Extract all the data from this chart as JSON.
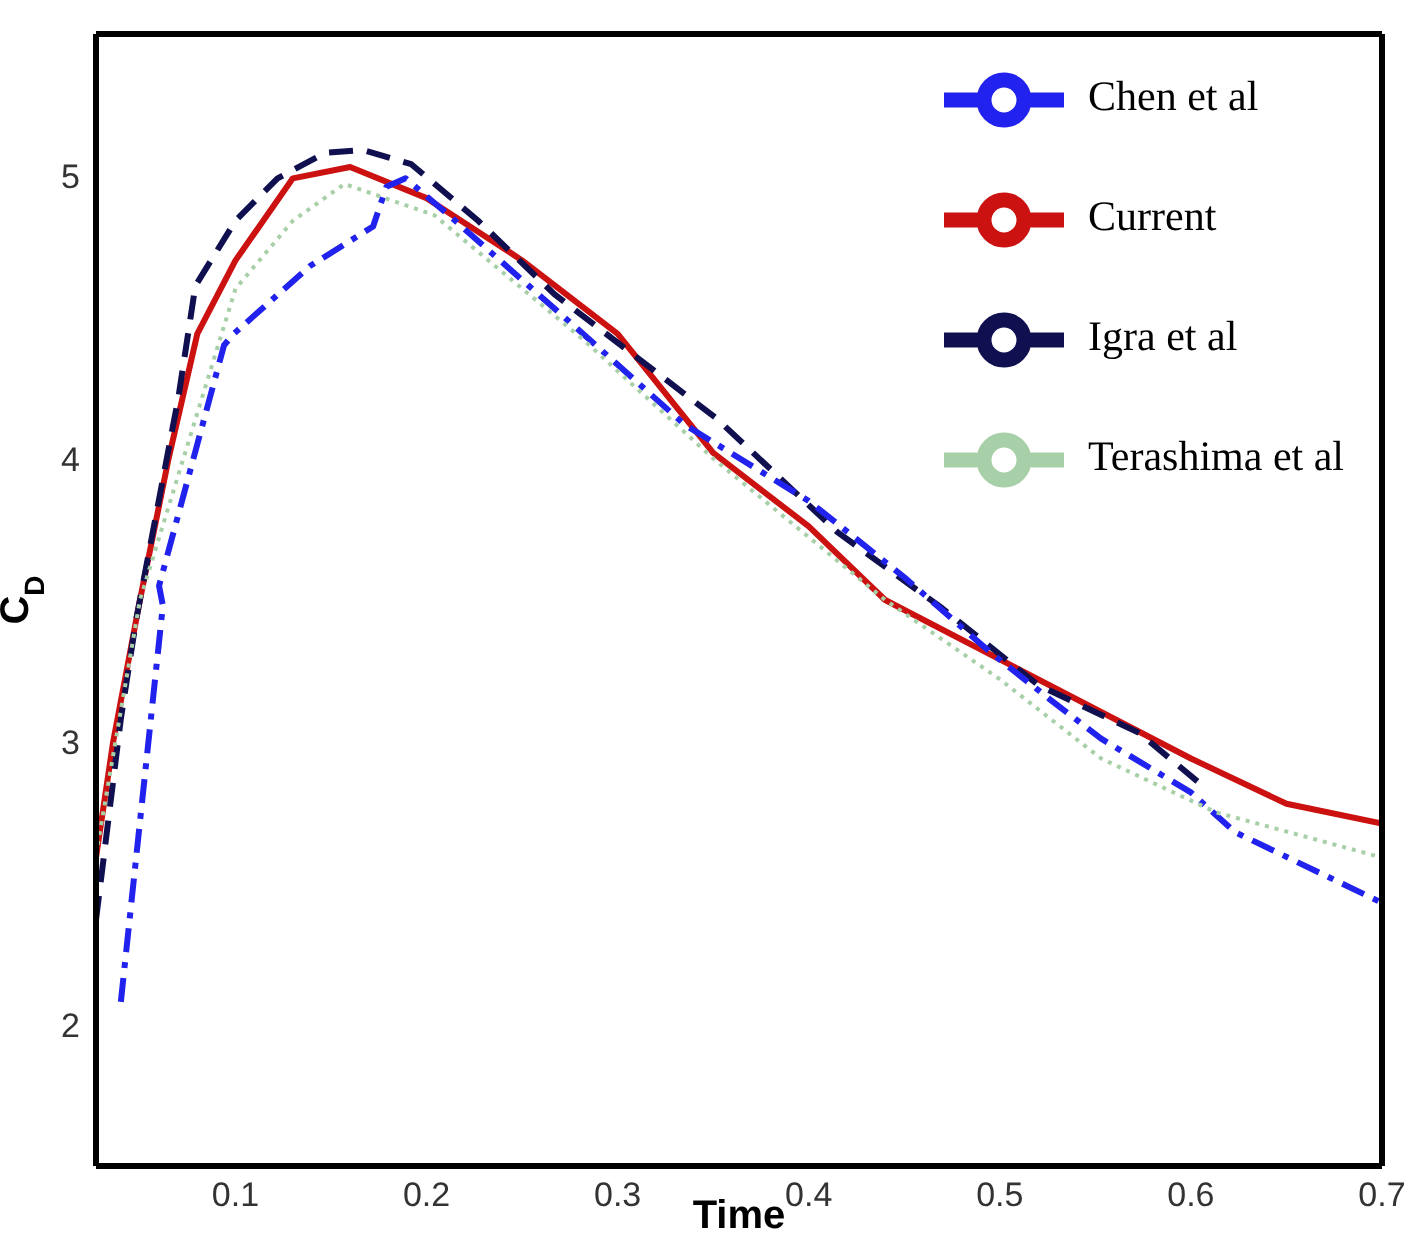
{
  "chart_data": {
    "type": "line",
    "xlabel": "Time",
    "ylabel": "C$_{D}$",
    "xlim": [
      0.027,
      0.7
    ],
    "ylim": [
      1.5,
      5.5
    ],
    "xticks": [
      0.1,
      0.2,
      0.3,
      0.4,
      0.5,
      0.6,
      0.7
    ],
    "yticks": [
      2,
      3,
      4,
      5
    ],
    "legend": "top right",
    "marker": "none",
    "series": [
      {
        "name": "Current",
        "color": "#cc1111",
        "line_style": "solid",
        "x": [
          0.027,
          0.036,
          0.05,
          0.065,
          0.08,
          0.1,
          0.13,
          0.16,
          0.2,
          0.25,
          0.3,
          0.35,
          0.4,
          0.44,
          0.5,
          0.6,
          0.65,
          0.7
        ],
        "values": [
          2.59,
          3.0,
          3.5,
          4.0,
          4.44,
          4.7,
          4.99,
          5.03,
          4.92,
          4.7,
          4.44,
          4.02,
          3.76,
          3.5,
          3.29,
          2.94,
          2.78,
          2.71
        ]
      },
      {
        "name": "Igra et al",
        "color": "#101050",
        "line_style": "dashed",
        "x": [
          0.027,
          0.04,
          0.048,
          0.068,
          0.07,
          0.079,
          0.1,
          0.122,
          0.147,
          0.167,
          0.192,
          0.227,
          0.267,
          0.352,
          0.415,
          0.47,
          0.52,
          0.573,
          0.605
        ],
        "values": [
          2.37,
          3.08,
          3.43,
          4.14,
          4.21,
          4.61,
          4.84,
          4.99,
          5.08,
          5.09,
          5.04,
          4.84,
          4.58,
          4.14,
          3.74,
          3.47,
          3.2,
          3.03,
          2.85
        ]
      },
      {
        "name": "Chen et al",
        "color": "#2222ee",
        "line_style": "dashdot",
        "x": [
          0.04,
          0.062,
          0.06,
          0.094,
          0.099,
          0.139,
          0.172,
          0.179,
          0.189,
          0.215,
          0.282,
          0.335,
          0.4,
          0.45,
          0.496,
          0.526,
          0.553,
          0.6,
          0.623,
          0.7
        ],
        "values": [
          2.08,
          3.48,
          3.55,
          4.4,
          4.44,
          4.68,
          4.82,
          4.96,
          4.99,
          4.84,
          4.44,
          4.12,
          3.85,
          3.58,
          3.31,
          3.15,
          3.01,
          2.82,
          2.68,
          2.43
        ]
      },
      {
        "name": "Terashima et al",
        "color": "#a8d0a8",
        "line_style": "dotted",
        "x": [
          0.027,
          0.05,
          0.1,
          0.13,
          0.157,
          0.204,
          0.282,
          0.35,
          0.44,
          0.5,
          0.553,
          0.613,
          0.7
        ],
        "values": [
          2.6,
          3.5,
          4.6,
          4.84,
          4.97,
          4.86,
          4.42,
          4.0,
          3.5,
          3.22,
          2.94,
          2.75,
          2.59
        ]
      }
    ]
  }
}
